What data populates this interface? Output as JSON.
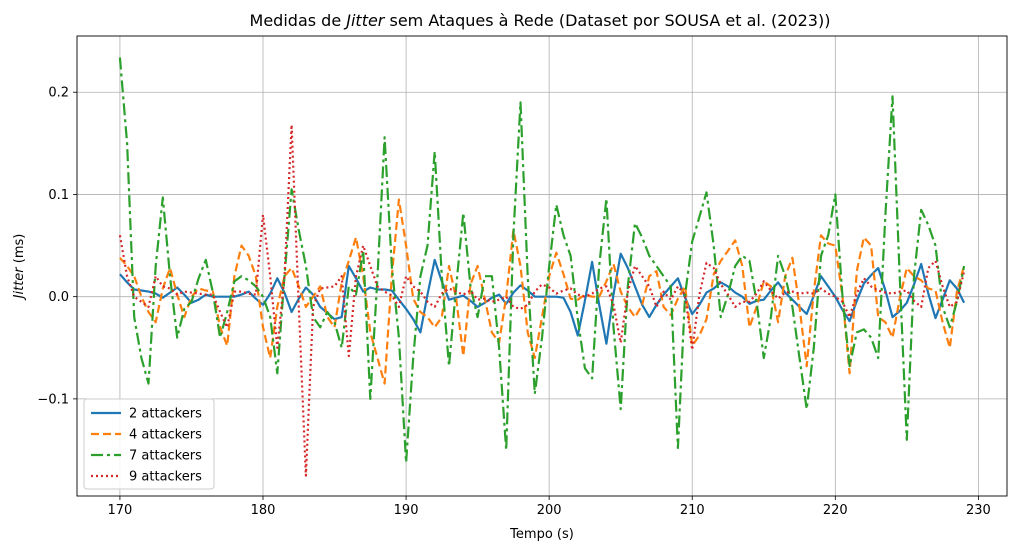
{
  "chart_data": {
    "type": "line",
    "title_prefix": "Medidas de ",
    "title_italic": "Jitter",
    "title_suffix": " sem Ataques à Rede (Dataset por SOUSA et al. (2023))",
    "xlabel": "Tempo (s)",
    "ylabel_italic": "Jitter",
    "ylabel_suffix": " (ms)",
    "xlim": [
      167,
      232
    ],
    "ylim": [
      -0.195,
      0.255
    ],
    "xticks": [
      170,
      180,
      190,
      200,
      210,
      220,
      230
    ],
    "yticks": [
      -0.1,
      0.0,
      0.1,
      0.2
    ],
    "ytick_labels": [
      "−0.1",
      "0.0",
      "0.1",
      "0.2"
    ],
    "grid": true,
    "legend_position": "lower-left",
    "x": [
      170,
      170.5,
      171,
      171.5,
      172,
      172.5,
      173,
      173.5,
      174,
      174.5,
      175,
      175.5,
      176,
      176.5,
      177,
      177.5,
      178,
      178.5,
      179,
      179.5,
      180,
      180.5,
      181,
      181.5,
      182,
      182.5,
      183,
      183.5,
      184,
      184.5,
      185,
      185.5,
      186,
      186.5,
      187,
      187.5,
      188,
      188.5,
      189,
      189.5,
      190,
      190.5,
      191,
      191.5,
      192,
      192.5,
      193,
      193.5,
      194,
      194.5,
      195,
      195.5,
      196,
      196.5,
      197,
      197.5,
      198,
      198.5,
      199,
      199.5,
      200,
      200.5,
      201,
      201.5,
      202,
      202.5,
      203,
      203.5,
      204,
      204.5,
      205,
      205.5,
      206,
      206.5,
      207,
      207.5,
      208,
      208.5,
      209,
      209.5,
      210,
      210.5,
      211,
      211.5,
      212,
      212.5,
      213,
      213.5,
      214,
      214.5,
      215,
      215.5,
      216,
      216.5,
      217,
      217.5,
      218,
      218.5,
      219,
      219.5,
      220,
      220.5,
      221,
      221.5,
      222,
      222.5,
      223,
      223.5,
      224,
      224.5,
      225,
      225.5,
      226,
      226.5,
      227,
      227.5,
      228,
      228.5,
      229
    ],
    "series": [
      {
        "name": "2 attackers",
        "color": "#1f77b4",
        "dash": "solid",
        "values": [
          0.022,
          0.014,
          0.007,
          0.006,
          0.005,
          0.003,
          -0.001,
          0.004,
          0.009,
          0.002,
          -0.006,
          -0.003,
          0.002,
          0,
          0,
          0,
          0,
          0.002,
          0.005,
          -0.002,
          -0.008,
          0.003,
          0.018,
          0.004,
          -0.015,
          -0.002,
          0.009,
          0.002,
          -0.01,
          -0.016,
          -0.022,
          -0.02,
          0.03,
          0.018,
          0.005,
          0.009,
          0.007,
          0.007,
          0.006,
          -0.003,
          -0.012,
          -0.022,
          -0.035,
          0.002,
          0.036,
          0.015,
          -0.003,
          -0.001,
          0.001,
          -0.004,
          -0.01,
          -0.006,
          -0.001,
          0.002,
          -0.007,
          0.004,
          0.011,
          0.006,
          0,
          0,
          0,
          0,
          -0.001,
          -0.015,
          -0.038,
          -0.004,
          0.034,
          -0.008,
          -0.046,
          0.002,
          0.042,
          0.028,
          0.01,
          -0.008,
          -0.02,
          -0.008,
          0.002,
          0.01,
          0.018,
          -0.001,
          -0.017,
          -0.008,
          0.004,
          0.008,
          0.014,
          0.01,
          0.004,
          0,
          -0.007,
          -0.004,
          -0.003,
          0.006,
          0.014,
          0.004,
          -0.003,
          -0.01,
          -0.017,
          0.001,
          0.02,
          0.01,
          0,
          -0.013,
          -0.024,
          -0.004,
          0.013,
          0.021,
          0.028,
          0.006,
          -0.02,
          -0.014,
          -0.006,
          0.012,
          0.032,
          0.003,
          -0.021,
          -0.003,
          0.016,
          0.008,
          -0.006
        ]
      },
      {
        "name": "4 attackers",
        "color": "#ff7f0e",
        "dash": "dashed",
        "values": [
          0.038,
          0.03,
          0.02,
          0,
          -0.015,
          -0.025,
          0.008,
          0.028,
          0.002,
          -0.02,
          0,
          0.008,
          0.006,
          0.005,
          -0.03,
          -0.048,
          0.02,
          0.05,
          0.04,
          0.02,
          -0.03,
          -0.06,
          -0.01,
          0.02,
          0.028,
          0.01,
          -0.01,
          0,
          0.01,
          -0.02,
          -0.03,
          0.014,
          0.035,
          0.058,
          0.02,
          -0.035,
          -0.06,
          -0.085,
          0.02,
          0.095,
          0.05,
          -0.002,
          -0.015,
          -0.02,
          -0.03,
          -0.02,
          0.03,
          -0.002,
          -0.058,
          0.012,
          0.03,
          -0.002,
          -0.035,
          -0.045,
          0,
          0.065,
          0.03,
          -0.035,
          -0.06,
          -0.02,
          0.02,
          0.043,
          0.022,
          -0.002,
          -0.003,
          0.002,
          0,
          0,
          0.015,
          0.032,
          0.005,
          -0.01,
          -0.02,
          -0.008,
          0.02,
          0.025,
          -0.01,
          -0.018,
          -0.002,
          0.01,
          -0.048,
          -0.038,
          -0.022,
          0.022,
          0.035,
          0.045,
          0.055,
          0.03,
          -0.03,
          -0.01,
          0.015,
          0.01,
          -0.025,
          0.02,
          0.038,
          -0.01,
          -0.068,
          0.005,
          0.06,
          0.052,
          0.05,
          0,
          -0.075,
          0.025,
          0.058,
          0.05,
          -0.02,
          -0.025,
          -0.04,
          -0.002,
          0.028,
          0.02,
          0.016,
          0.008,
          0.006,
          -0.025,
          -0.05,
          0.005,
          0.03
        ]
      },
      {
        "name": "7 attackers",
        "color": "#2ca02c",
        "dash": "dashdot",
        "values": [
          0.234,
          0.15,
          -0.02,
          -0.06,
          -0.085,
          0.03,
          0.097,
          0.02,
          -0.04,
          -0.012,
          -0.005,
          0.018,
          0.036,
          0.004,
          -0.04,
          -0.015,
          0.015,
          0.02,
          0.016,
          0.01,
          0,
          -0.02,
          -0.075,
          0.02,
          0.105,
          0.065,
          0.03,
          -0.02,
          -0.03,
          -0.015,
          -0.025,
          -0.05,
          0.01,
          0.002,
          0.045,
          -0.1,
          0.02,
          0.156,
          0.03,
          -0.04,
          -0.162,
          -0.06,
          0.02,
          0.05,
          0.142,
          0.02,
          -0.068,
          0.01,
          0.082,
          0.01,
          -0.02,
          0.02,
          0.02,
          -0.05,
          -0.15,
          0.06,
          0.19,
          0.02,
          -0.095,
          -0.04,
          0.03,
          0.09,
          0.06,
          0.04,
          -0.022,
          -0.07,
          -0.08,
          0.03,
          0.096,
          -0.03,
          -0.11,
          0.01,
          0.072,
          0.058,
          0.04,
          0.03,
          0.02,
          0.01,
          -0.148,
          0.002,
          0.054,
          0.078,
          0.102,
          0.05,
          -0.02,
          0.002,
          0.03,
          0.04,
          0.035,
          -0.005,
          -0.06,
          -0.02,
          0.04,
          0.02,
          -0.01,
          -0.06,
          -0.11,
          -0.05,
          0.04,
          0.06,
          0.1,
          0,
          -0.068,
          -0.035,
          -0.032,
          -0.04,
          -0.06,
          0.08,
          0.196,
          0.02,
          -0.14,
          0.02,
          0.085,
          0.07,
          0.05,
          -0.01,
          -0.03,
          -0.005,
          0.03
        ]
      },
      {
        "name": "9 attackers",
        "color": "#d62728",
        "dash": "dotted",
        "values": [
          0.06,
          0.02,
          0,
          -0.005,
          -0.01,
          0.02,
          0.01,
          0.008,
          0.002,
          0.005,
          0.004,
          0.003,
          0.002,
          0.002,
          -0.015,
          -0.03,
          0.005,
          0.005,
          0.003,
          0.002,
          0.08,
          0.02,
          -0.05,
          0.02,
          0.168,
          -0.01,
          -0.175,
          -0.01,
          0.008,
          0.009,
          0.01,
          0.02,
          -0.058,
          0.02,
          0.05,
          0.03,
          0.01,
          0.005,
          0.001,
          -0.01,
          0.02,
          0.01,
          0.005,
          -0.005,
          -0.01,
          0.003,
          0.008,
          0.005,
          0.002,
          0.006,
          -0.003,
          -0.002,
          -0.005,
          -0.003,
          0,
          -0.01,
          -0.012,
          -0.008,
          0.005,
          0.012,
          0.009,
          0.003,
          0.006,
          0.008,
          0.002,
          0,
          0.003,
          0.008,
          0.01,
          -0.008,
          -0.045,
          0.005,
          0.03,
          0.02,
          0.01,
          -0.01,
          0.005,
          -0.003,
          0.01,
          0.002,
          -0.052,
          0.002,
          0.033,
          0.028,
          0.012,
          0.002,
          -0.01,
          -0.005,
          -0.005,
          0.003,
          0.015,
          0.006,
          -0.002,
          0.004,
          0.005,
          0.003,
          0.004,
          0.003,
          0.008,
          0.003,
          0,
          -0.005,
          -0.02,
          0.003,
          0.018,
          0.01,
          0.006,
          0.004,
          0.003,
          0.005,
          0.006,
          -0.004,
          -0.01,
          0.028,
          0.035,
          0.01,
          -0.01,
          -0.005,
          0.025
        ]
      }
    ]
  }
}
